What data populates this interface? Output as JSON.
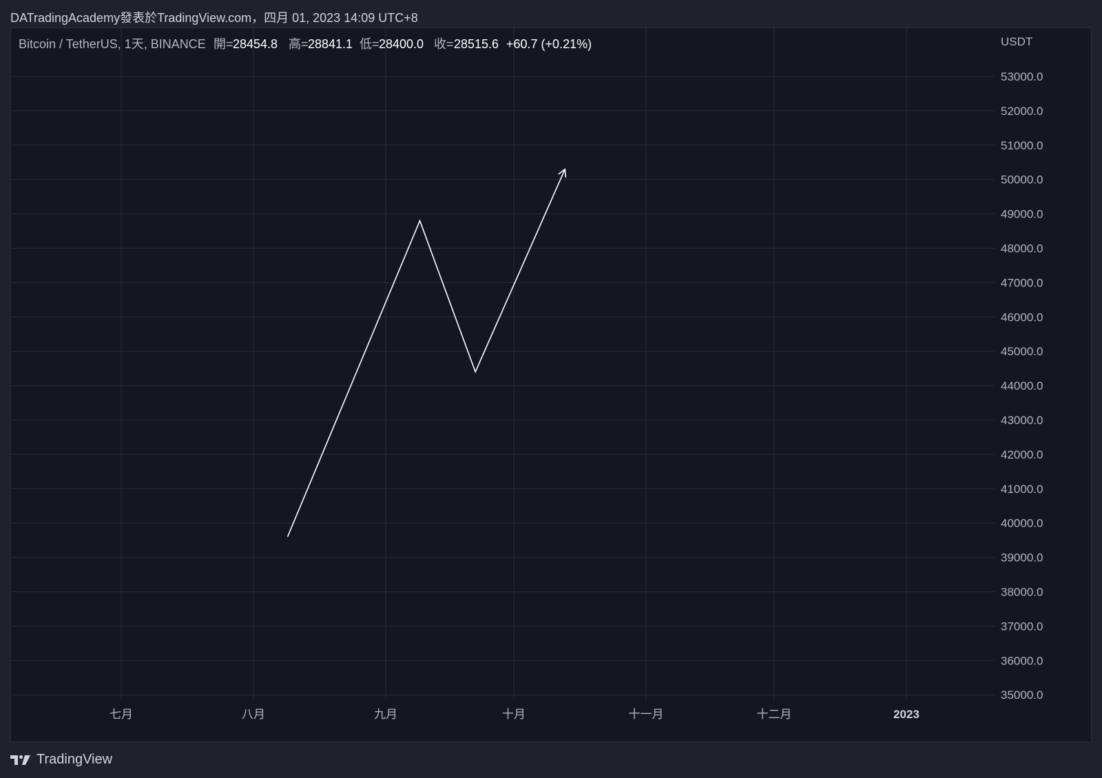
{
  "header": {
    "publish_line": "DATradingAcademy發表於TradingView.com，四月 01, 2023 14:09 UTC+8"
  },
  "legend": {
    "symbol": "Bitcoin / TetherUS, 1天, BINANCE",
    "open_label": "開=",
    "open_value": "28454.8",
    "high_label": "高=",
    "high_value": "28841.1",
    "low_label": "低=",
    "low_value": "28400.0",
    "close_label": "收=",
    "close_value": "28515.6",
    "change": "+60.7 (+0.21%)"
  },
  "footer": {
    "brand": "TradingView",
    "logo_icon": "tradingview-logo-icon"
  },
  "colors": {
    "background": "#131722",
    "outer_background": "#1e222d",
    "grid": "#2a2e39",
    "text": "#b2b5be",
    "line": "#ffffff"
  },
  "chart_data": {
    "type": "line",
    "title": "",
    "ylabel": "USDT",
    "xlabel": "",
    "ylim": [
      34500,
      54000
    ],
    "grid": true,
    "x_ticks": [
      "七月",
      "八月",
      "九月",
      "十月",
      "十一月",
      "十二月",
      "2023"
    ],
    "y_ticks": [
      53000,
      52000,
      51000,
      50000,
      49000,
      48000,
      47000,
      46000,
      45000,
      44000,
      43000,
      42000,
      41000,
      40000,
      39000,
      38000,
      37000,
      36000,
      35000
    ],
    "y_tick_labels": [
      "53000.0",
      "52000.0",
      "51000.0",
      "50000.0",
      "49000.0",
      "48000.0",
      "47000.0",
      "46000.0",
      "45000.0",
      "44000.0",
      "43000.0",
      "42000.0",
      "41000.0",
      "40000.0",
      "39000.0",
      "38000.0",
      "37000.0",
      "36000.0",
      "35000.0"
    ],
    "series": [
      {
        "points": [
          {
            "x": "2022-08-09",
            "y": 39600
          },
          {
            "x": "2022-09-09",
            "y": 48800
          },
          {
            "x": "2022-09-22",
            "y": 44400
          },
          {
            "x": "2022-10-13",
            "y": 50300
          }
        ],
        "arrow_end": true
      }
    ]
  }
}
